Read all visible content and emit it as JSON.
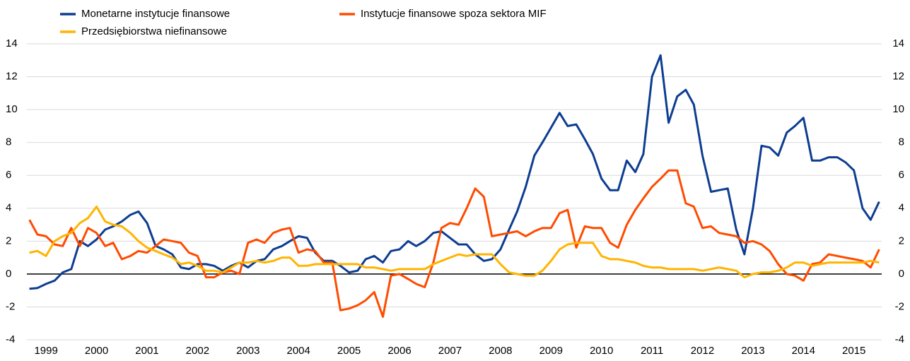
{
  "chart_data": {
    "type": "line",
    "x": [
      1999.17,
      1999.33,
      1999.5,
      1999.67,
      1999.83,
      2000.0,
      2000.17,
      2000.33,
      2000.5,
      2000.67,
      2000.83,
      2001.0,
      2001.17,
      2001.33,
      2001.5,
      2001.67,
      2001.83,
      2002.0,
      2002.17,
      2002.33,
      2002.5,
      2002.67,
      2002.83,
      2003.0,
      2003.17,
      2003.33,
      2003.5,
      2003.67,
      2003.83,
      2004.0,
      2004.17,
      2004.33,
      2004.5,
      2004.67,
      2004.83,
      2005.0,
      2005.17,
      2005.33,
      2005.5,
      2005.67,
      2005.83,
      2006.0,
      2006.17,
      2006.33,
      2006.5,
      2006.67,
      2006.83,
      2007.0,
      2007.17,
      2007.33,
      2007.5,
      2007.67,
      2007.83,
      2008.0,
      2008.17,
      2008.33,
      2008.5,
      2008.67,
      2008.83,
      2009.0,
      2009.17,
      2009.33,
      2009.5,
      2009.67,
      2009.83,
      2010.0,
      2010.17,
      2010.33,
      2010.5,
      2010.67,
      2010.83,
      2011.0,
      2011.17,
      2011.33,
      2011.5,
      2011.67,
      2011.83,
      2012.0,
      2012.17,
      2012.33,
      2012.5,
      2012.67,
      2012.83,
      2013.0,
      2013.17,
      2013.33,
      2013.5,
      2013.67,
      2013.83,
      2014.0,
      2014.17,
      2014.33,
      2014.5,
      2014.67,
      2014.83,
      2015.0,
      2015.17,
      2015.33,
      2015.5,
      2015.67,
      2015.83,
      2016.0
    ],
    "series": [
      {
        "name": "Monetarne instytucje finansowe",
        "color": "#0d3d91",
        "values": [
          -0.9,
          -0.85,
          -0.6,
          -0.4,
          0.1,
          0.3,
          2.0,
          1.7,
          2.1,
          2.7,
          2.9,
          3.2,
          3.6,
          3.8,
          3.1,
          1.7,
          1.5,
          1.2,
          0.4,
          0.3,
          0.6,
          0.6,
          0.5,
          0.2,
          0.5,
          0.7,
          0.4,
          0.8,
          0.9,
          1.5,
          1.7,
          2.0,
          2.3,
          2.2,
          1.3,
          0.8,
          0.8,
          0.5,
          0.1,
          0.2,
          0.9,
          1.1,
          0.7,
          1.4,
          1.5,
          2.0,
          1.7,
          2.0,
          2.5,
          2.6,
          2.2,
          1.8,
          1.8,
          1.2,
          0.8,
          0.9,
          1.5,
          2.7,
          3.8,
          5.3,
          7.2,
          8.0,
          8.9,
          9.8,
          9.0,
          9.1,
          8.2,
          7.3,
          5.8,
          5.1,
          5.1,
          6.9,
          6.2,
          7.3,
          12.0,
          13.3,
          9.2,
          10.8,
          11.2,
          10.3,
          7.2,
          5.0,
          5.1,
          5.2,
          2.7,
          1.2,
          4.0,
          7.8,
          7.7,
          7.2,
          8.6,
          9.0,
          9.5,
          6.9,
          6.9,
          7.1,
          7.1,
          6.8,
          6.3,
          4.0,
          3.3,
          4.4
        ]
      },
      {
        "name": "Instytucje finansowe spoza sektora MIF",
        "color": "#ff4b00",
        "values": [
          3.3,
          2.4,
          2.3,
          1.8,
          1.7,
          2.8,
          1.7,
          2.8,
          2.5,
          1.7,
          1.9,
          0.9,
          1.1,
          1.4,
          1.3,
          1.7,
          2.1,
          2.0,
          1.9,
          1.3,
          1.1,
          -0.2,
          -0.2,
          0.1,
          0.2,
          0.0,
          1.9,
          2.1,
          1.9,
          2.5,
          2.7,
          2.8,
          1.3,
          1.5,
          1.4,
          0.7,
          0.7,
          -2.2,
          -2.1,
          -1.9,
          -1.6,
          -1.1,
          -2.6,
          -0.1,
          0.0,
          -0.3,
          -0.6,
          -0.8,
          0.7,
          2.8,
          3.1,
          3.0,
          4.0,
          5.2,
          4.7,
          2.3,
          2.4,
          2.5,
          2.6,
          2.3,
          2.6,
          2.8,
          2.8,
          3.7,
          3.9,
          1.6,
          2.9,
          2.8,
          2.8,
          1.9,
          1.6,
          3.0,
          3.9,
          4.6,
          5.3,
          5.8,
          6.3,
          6.3,
          4.3,
          4.1,
          2.8,
          2.9,
          2.5,
          2.4,
          2.3,
          1.9,
          2.0,
          1.8,
          1.4,
          0.6,
          0.0,
          -0.1,
          -0.4,
          0.6,
          0.7,
          1.2,
          1.1,
          1.0,
          0.9,
          0.8,
          0.4,
          1.5
        ]
      },
      {
        "name": "Przedsiębiorstwa niefinansowe",
        "color": "#ffb400",
        "values": [
          1.3,
          1.4,
          1.1,
          2.0,
          2.3,
          2.5,
          3.1,
          3.4,
          4.1,
          3.2,
          3.0,
          2.9,
          2.5,
          2.0,
          1.6,
          1.4,
          1.2,
          1.0,
          0.6,
          0.7,
          0.5,
          0.2,
          0.2,
          0.1,
          0.4,
          0.7,
          0.7,
          0.8,
          0.7,
          0.8,
          1.0,
          1.0,
          0.5,
          0.5,
          0.6,
          0.6,
          0.6,
          0.6,
          0.6,
          0.6,
          0.4,
          0.4,
          0.3,
          0.2,
          0.3,
          0.3,
          0.3,
          0.3,
          0.6,
          0.8,
          1.0,
          1.2,
          1.1,
          1.2,
          1.2,
          1.2,
          0.6,
          0.1,
          0.0,
          -0.1,
          -0.1,
          0.2,
          0.8,
          1.5,
          1.8,
          1.9,
          1.9,
          1.9,
          1.1,
          0.9,
          0.9,
          0.8,
          0.7,
          0.5,
          0.4,
          0.4,
          0.3,
          0.3,
          0.3,
          0.3,
          0.2,
          0.3,
          0.4,
          0.3,
          0.2,
          -0.2,
          0.0,
          0.1,
          0.1,
          0.2,
          0.4,
          0.7,
          0.7,
          0.5,
          0.6,
          0.7,
          0.7,
          0.7,
          0.7,
          0.7,
          0.8,
          0.7
        ]
      }
    ],
    "xlim": [
      1999.12,
      2016.05
    ],
    "xticks": [
      {
        "value": 1999.5,
        "label": "1999"
      },
      {
        "value": 2000.5,
        "label": "2000"
      },
      {
        "value": 2001.5,
        "label": "2001"
      },
      {
        "value": 2002.5,
        "label": "2002"
      },
      {
        "value": 2003.5,
        "label": "2003"
      },
      {
        "value": 2004.5,
        "label": "2004"
      },
      {
        "value": 2005.5,
        "label": "2005"
      },
      {
        "value": 2006.5,
        "label": "2006"
      },
      {
        "value": 2007.5,
        "label": "2007"
      },
      {
        "value": 2008.5,
        "label": "2008"
      },
      {
        "value": 2009.5,
        "label": "2009"
      },
      {
        "value": 2010.5,
        "label": "2010"
      },
      {
        "value": 2011.5,
        "label": "2011"
      },
      {
        "value": 2012.5,
        "label": "2012"
      },
      {
        "value": 2013.5,
        "label": "2013"
      },
      {
        "value": 2014.5,
        "label": "2014"
      },
      {
        "value": 2015.5,
        "label": "2015"
      }
    ],
    "ylim": [
      -4,
      14
    ],
    "yticks": [
      -4,
      -2,
      0,
      2,
      4,
      6,
      8,
      10,
      12,
      14
    ],
    "grid": true
  }
}
